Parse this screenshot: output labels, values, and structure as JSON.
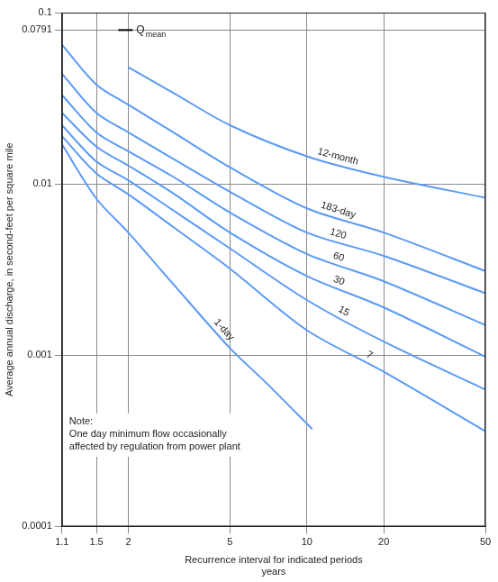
{
  "chart_data": {
    "type": "line",
    "log": true,
    "grid": true,
    "x_label": [
      "Recurrence interval for indicated periods",
      "years"
    ],
    "y_label": "Average annual discharge, in second-feet per square mile",
    "xlim": [
      1.1,
      50
    ],
    "xticks": [
      1.1,
      1.5,
      2,
      5,
      10,
      20,
      50
    ],
    "ylim": [
      0.0001,
      0.1
    ],
    "yticks": [
      0.0001,
      0.001,
      0.01,
      0.0791,
      0.1
    ],
    "series": [
      {
        "name": "12-month",
        "color": "#5b9bf5",
        "x": [
          2,
          3,
          5,
          10,
          20,
          50
        ],
        "values": [
          0.048,
          0.034,
          0.022,
          0.0145,
          0.011,
          0.0083
        ]
      },
      {
        "name": "183-day",
        "color": "#5b9bf5",
        "x": [
          1.1,
          1.5,
          2,
          3,
          5,
          10,
          20,
          50
        ],
        "values": [
          0.065,
          0.038,
          0.029,
          0.02,
          0.0125,
          0.0072,
          0.0052,
          0.0031
        ]
      },
      {
        "name": "120",
        "color": "#5b9bf5",
        "x": [
          1.1,
          1.5,
          2,
          3,
          5,
          10,
          20,
          50
        ],
        "values": [
          0.044,
          0.026,
          0.02,
          0.014,
          0.009,
          0.0052,
          0.0038,
          0.0023
        ]
      },
      {
        "name": "60",
        "color": "#5b9bf5",
        "x": [
          1.1,
          1.5,
          2,
          3,
          5,
          10,
          20,
          50
        ],
        "values": [
          0.033,
          0.02,
          0.0155,
          0.011,
          0.0068,
          0.0039,
          0.0027,
          0.0015
        ]
      },
      {
        "name": "30",
        "color": "#5b9bf5",
        "x": [
          1.1,
          1.5,
          2,
          3,
          5,
          10,
          20,
          50
        ],
        "values": [
          0.026,
          0.0165,
          0.0128,
          0.0088,
          0.0052,
          0.0029,
          0.0019,
          0.00098
        ]
      },
      {
        "name": "15",
        "color": "#5b9bf5",
        "x": [
          1.1,
          1.5,
          2,
          3,
          5,
          10,
          20,
          50
        ],
        "values": [
          0.022,
          0.0135,
          0.0105,
          0.007,
          0.0042,
          0.0021,
          0.0012,
          0.00063
        ]
      },
      {
        "name": "7",
        "color": "#5b9bf5",
        "x": [
          1.1,
          1.5,
          2,
          3,
          5,
          10,
          20,
          50
        ],
        "values": [
          0.019,
          0.0115,
          0.0087,
          0.0056,
          0.0032,
          0.0014,
          0.0008,
          0.00036
        ]
      },
      {
        "name": "1-day",
        "color": "#5b9bf5",
        "x": [
          1.1,
          1.5,
          2,
          3,
          5,
          7,
          10.5
        ],
        "values": [
          0.017,
          0.0082,
          0.0052,
          0.0026,
          0.0011,
          0.00068,
          0.00037
        ]
      }
    ],
    "annotations": [
      {
        "text": "Q",
        "subscript": "mean",
        "x": 1.95,
        "y": 0.0791
      },
      {
        "text": [
          "Note:",
          "One day minimum flow occasionally",
          "affected by regulation from power plant"
        ]
      }
    ]
  }
}
